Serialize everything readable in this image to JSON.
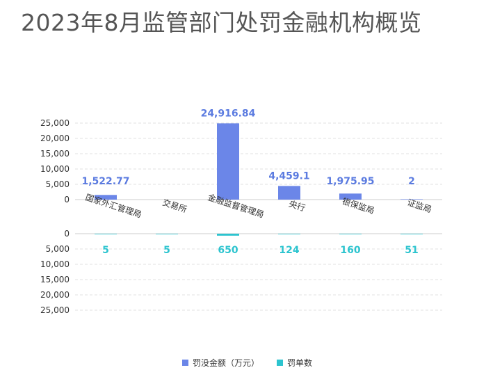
{
  "title": "2023年8月监管部门处罚金融机构概览",
  "chart_data": {
    "type": "bar",
    "categories": [
      "国家外汇管理局",
      "交易所",
      "金融监督管理局",
      "央行",
      "银保监局",
      "证监局"
    ],
    "series": [
      {
        "name": "罚没金额（万元）",
        "values": [
          1522.77,
          null,
          24916.84,
          4459.1,
          1975.95,
          2
        ],
        "labels": [
          "1,522.77",
          "",
          "24,916.84",
          "4,459.1",
          "1,975.95",
          "2"
        ],
        "color": "#6b86e8"
      },
      {
        "name": "罚单数",
        "values": [
          5,
          5,
          650,
          124,
          160,
          51
        ],
        "labels": [
          "5",
          "5",
          "650",
          "124",
          "160",
          "51"
        ],
        "color": "#2cc4cf"
      }
    ],
    "ylim_top": [
      0,
      25000
    ],
    "ylim_bottom": [
      0,
      25000
    ],
    "yticks_top": [
      "0",
      "5,000",
      "10,000",
      "15,000",
      "20,000",
      "25,000"
    ],
    "yticks_bottom": [
      "0",
      "5,000",
      "10,000",
      "15,000",
      "20,000",
      "25,000"
    ],
    "grid": true,
    "legend": "bottom-center"
  }
}
